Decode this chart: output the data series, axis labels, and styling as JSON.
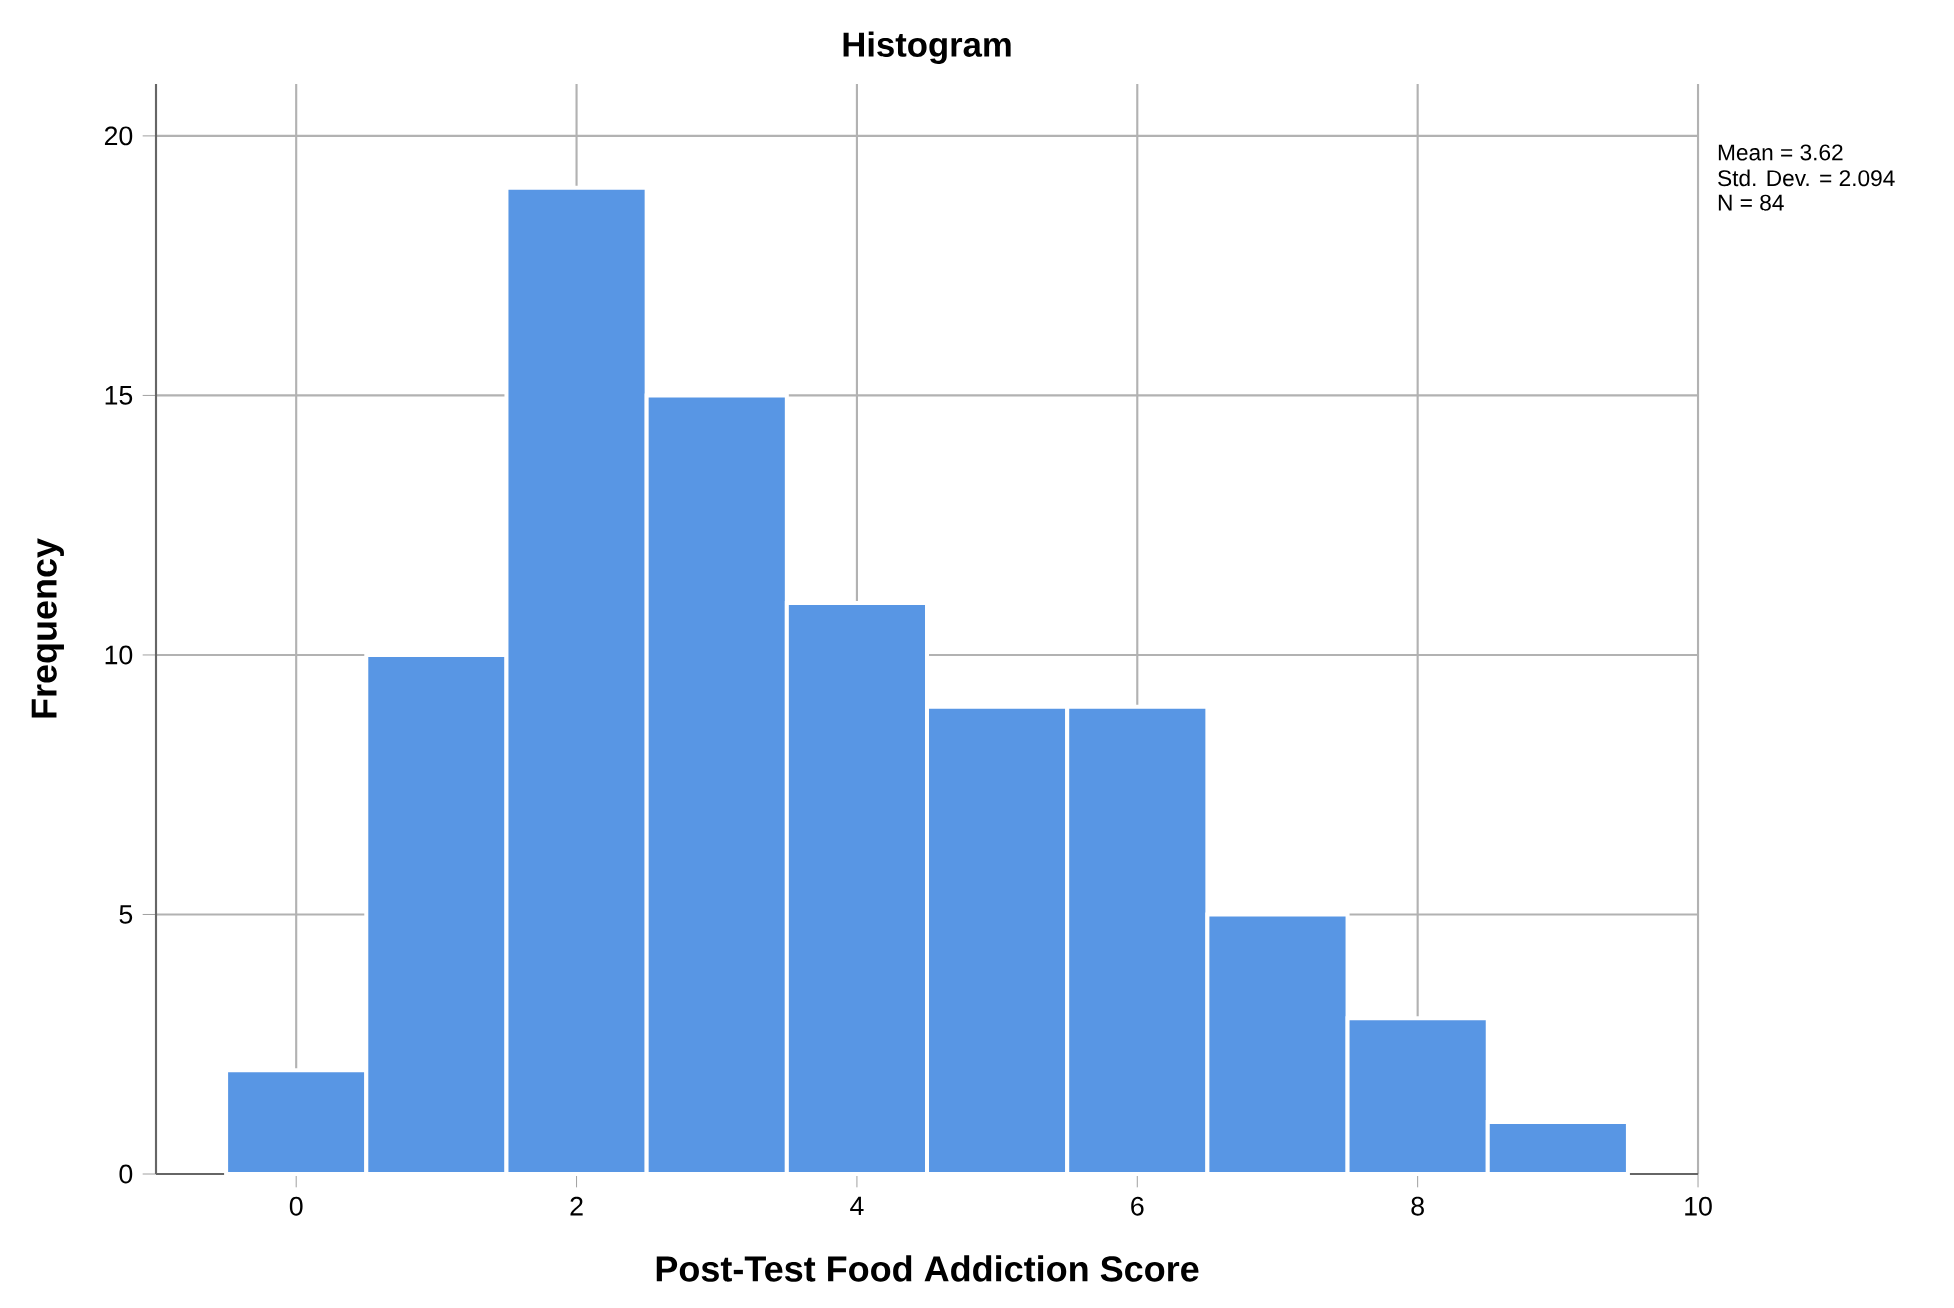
{
  "chart_data": {
    "type": "histogram",
    "title": "Histogram",
    "xlabel": "Post-Test Food Addiction Score",
    "ylabel": "Frequency",
    "bins": [
      -0.5,
      0.5,
      1.5,
      2.5,
      3.5,
      4.5,
      5.5,
      6.5,
      7.5,
      8.5,
      9.5
    ],
    "values": [
      2,
      10,
      19,
      15,
      11,
      9,
      9,
      5,
      3,
      1
    ],
    "color": "#5896e4",
    "xlim": [
      -1,
      10
    ],
    "xticks": [
      0,
      2,
      4,
      6,
      8,
      10
    ],
    "ylim": [
      0,
      21
    ],
    "yticks": [
      0,
      5,
      10,
      15,
      20
    ],
    "grid": true,
    "annotations": [
      "Mean = 3.62",
      "Std. Dev. = 2.094",
      "N = 84"
    ]
  }
}
